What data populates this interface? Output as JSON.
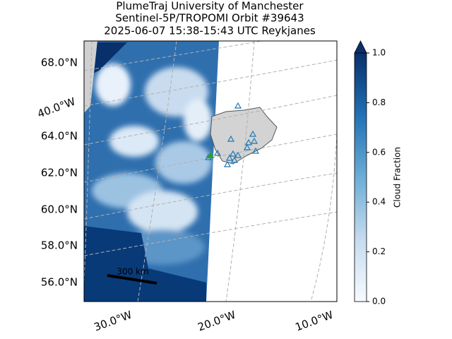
{
  "header": {
    "lines": [
      "PlumeTraj    University of Manchester",
      "Sentinel-5P/TROPOMI Orbit #39643",
      "2025-06-07   15:38-15:43 UTC   Reykjanes"
    ]
  },
  "map": {
    "lat_labels": [
      "68.0°N",
      "64.0°N",
      "62.0°N",
      "60.0°N",
      "58.0°N",
      "56.0°N"
    ],
    "lon_labels": [
      "40.0°W",
      "30.0°W",
      "20.0°W",
      "10.0°W"
    ],
    "scale_bar": "300 km"
  },
  "colorbar": {
    "label": "Cloud Fraction",
    "lim": [
      0,
      1
    ],
    "ticks": [
      {
        "value": 0,
        "label": "0.0"
      },
      {
        "value": 0.2,
        "label": "0.2"
      },
      {
        "value": 0.4,
        "label": "0.4"
      },
      {
        "value": 0.6,
        "label": "0.6"
      },
      {
        "value": 0.8,
        "label": "0.8"
      },
      {
        "value": 1,
        "label": "1.0"
      }
    ]
  }
}
